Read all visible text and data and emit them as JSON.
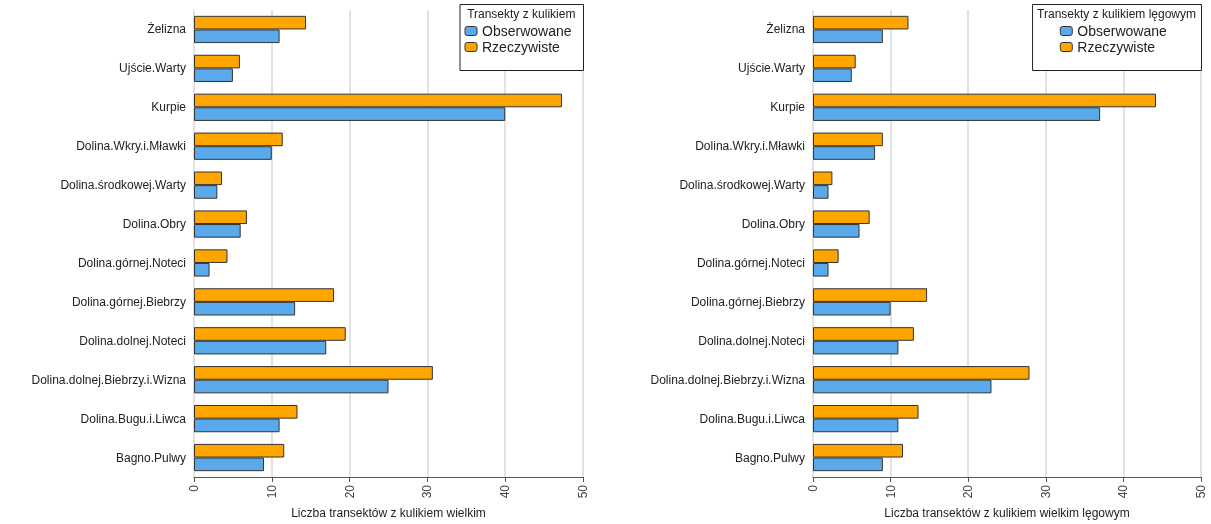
{
  "chart_data": [
    {
      "type": "bar",
      "orientation": "horizontal",
      "xlabel": "Liczba transektów z kulikiem wielkim",
      "legend_title": "Transekty z kulikiem",
      "legend": "top right",
      "grid": "x",
      "categories": [
        "Żelizna",
        "Ujście.Warty",
        "Kurpie",
        "Dolina.Wkry.i.Mławki",
        "Dolina.środkowej.Warty",
        "Dolina.Obry",
        "Dolina.górnej.Noteci",
        "Dolina.górnej.Biebrzy",
        "Dolina.dolnej.Noteci",
        "Dolina.dolnej.Biebrzy.i.Wizna",
        "Dolina.Bugu.i.Liwca",
        "Bagno.Pulwy"
      ],
      "series": [
        {
          "name": "Obserwowane",
          "color": "#5aaaeb",
          "values": [
            11,
            5,
            40,
            10,
            3,
            6,
            2,
            13,
            17,
            25,
            11,
            9
          ]
        },
        {
          "name": "Rzeczywiste",
          "color": "#ffa500",
          "values": [
            14.4,
            5.9,
            47.3,
            11.4,
            3.6,
            6.8,
            4.3,
            18,
            19.5,
            30.7,
            13.3,
            11.6
          ]
        }
      ],
      "xlim": [
        0,
        50
      ],
      "xticks": [
        0,
        10,
        20,
        30,
        40,
        50
      ]
    },
    {
      "type": "bar",
      "orientation": "horizontal",
      "xlabel": "Liczba transektów z kulikiem wielkim lęgowym",
      "legend_title": "Transekty z kulikiem lęgowym",
      "legend": "top right",
      "grid": "x",
      "categories": [
        "Żelizna",
        "Ujście.Warty",
        "Kurpie",
        "Dolina.Wkry.i.Mławki",
        "Dolina.środkowej.Warty",
        "Dolina.Obry",
        "Dolina.górnej.Noteci",
        "Dolina.górnej.Biebrzy",
        "Dolina.dolnej.Noteci",
        "Dolina.dolnej.Biebrzy.i.Wizna",
        "Dolina.Bugu.i.Liwca",
        "Bagno.Pulwy"
      ],
      "series": [
        {
          "name": "Obserwowane",
          "color": "#5aaaeb",
          "values": [
            9,
            5,
            37,
            8,
            2,
            6,
            2,
            10,
            11,
            23,
            11,
            9
          ]
        },
        {
          "name": "Rzeczywiste",
          "color": "#ffa500",
          "values": [
            12.3,
            5.5,
            44.2,
            9,
            2.5,
            7.3,
            3.3,
            14.7,
            13,
            27.9,
            13.6,
            11.6
          ]
        }
      ],
      "xlim": [
        0,
        50
      ],
      "xticks": [
        0,
        10,
        20,
        30,
        40,
        50
      ]
    }
  ]
}
